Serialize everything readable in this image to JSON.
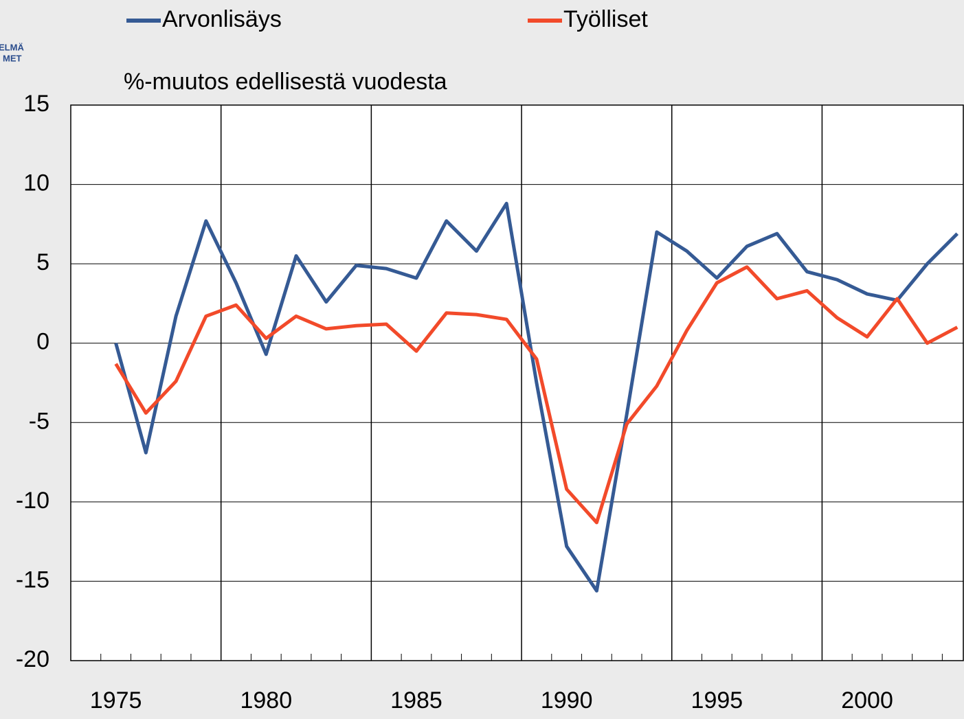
{
  "logo": {
    "lines": [
      "ELMÄ",
      "MET"
    ]
  },
  "chart_data": {
    "type": "line",
    "subtitle": "%-muutos edellisestä vuodesta",
    "x": [
      1975,
      1976,
      1977,
      1978,
      1979,
      1980,
      1981,
      1982,
      1983,
      1984,
      1985,
      1986,
      1987,
      1988,
      1989,
      1990,
      1991,
      1992,
      1993,
      1994,
      1995,
      1996,
      1997,
      1998,
      1999,
      2000,
      2001,
      2002,
      2003
    ],
    "series": [
      {
        "name": "Arvonlisäys",
        "color": "#355a94",
        "values": [
          0,
          -6.9,
          1.7,
          7.7,
          3.8,
          -0.7,
          5.5,
          2.6,
          4.9,
          4.7,
          4.1,
          7.7,
          5.8,
          8.8,
          -2.5,
          -12.8,
          -15.6,
          -4.5,
          7.0,
          5.8,
          4.1,
          6.1,
          6.9,
          4.5,
          4.0,
          3.1,
          2.7,
          5.0,
          6.9
        ]
      },
      {
        "name": "Työlliset",
        "color": "#f24a2a",
        "values": [
          -1.3,
          -4.4,
          -2.4,
          1.7,
          2.4,
          0.3,
          1.7,
          0.9,
          1.1,
          1.2,
          -0.5,
          1.9,
          1.8,
          1.5,
          -1.0,
          -9.2,
          -11.3,
          -5.1,
          -2.7,
          0.8,
          3.8,
          4.8,
          2.8,
          3.3,
          1.6,
          0.4,
          2.8,
          0.0,
          1.0
        ]
      }
    ],
    "xlim": [
      1973.5,
      2003.2
    ],
    "xticks": [
      1975,
      1980,
      1985,
      1990,
      1995,
      2000
    ],
    "xgridlines": [
      1978.5,
      1983.5,
      1988.5,
      1993.5,
      1998.5
    ],
    "xminorticks": [
      1974.5,
      1975.5,
      1976.5,
      1977.5,
      1979.5,
      1980.5,
      1981.5,
      1982.5,
      1984.5,
      1985.5,
      1986.5,
      1987.5,
      1989.5,
      1990.5,
      1991.5,
      1992.5,
      1994.5,
      1995.5,
      1996.5,
      1997.5,
      1999.5,
      2000.5,
      2001.5,
      2002.5
    ],
    "ylim": [
      -20,
      15
    ],
    "yticks": [
      -20,
      -15,
      -10,
      -5,
      0,
      5,
      10,
      15
    ],
    "grid": true,
    "legend": "top"
  }
}
